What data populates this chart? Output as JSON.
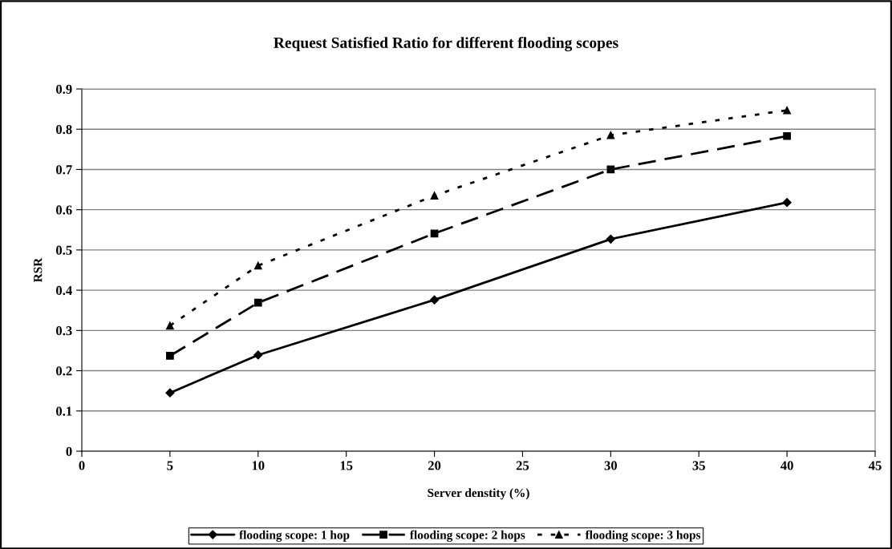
{
  "chart_data": {
    "type": "line",
    "title": "Request Satisfied Ratio for different flooding scopes",
    "xlabel": "Server denstity (%)",
    "ylabel": "RSR",
    "x": [
      5,
      10,
      20,
      30,
      40
    ],
    "series": [
      {
        "name": "flooding scope: 1 hop",
        "color": "#000000",
        "marker": "diamond",
        "line_style": "solid",
        "values": [
          0.145,
          0.239,
          0.376,
          0.527,
          0.618
        ]
      },
      {
        "name": "flooding scope: 2 hops",
        "color": "#000000",
        "marker": "square",
        "line_style": "dashed",
        "values": [
          0.237,
          0.369,
          0.541,
          0.7,
          0.783
        ]
      },
      {
        "name": "flooding scope: 3 hops",
        "color": "#000000",
        "marker": "triangle",
        "line_style": "dotted",
        "values": [
          0.312,
          0.461,
          0.635,
          0.785,
          0.847
        ]
      }
    ],
    "xlim": [
      0,
      45
    ],
    "xticks": [
      0,
      5,
      10,
      15,
      20,
      25,
      30,
      35,
      40,
      45
    ],
    "ylim": [
      0,
      0.9
    ],
    "yticks": [
      0,
      0.1,
      0.2,
      0.3,
      0.4,
      0.5,
      0.6,
      0.7,
      0.8,
      0.9
    ],
    "grid": "y",
    "legend": "bottom"
  }
}
